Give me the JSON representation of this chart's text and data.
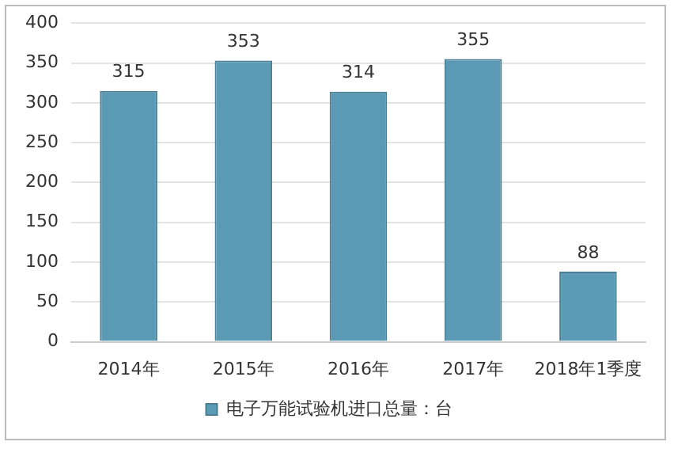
{
  "chart_data": {
    "type": "bar",
    "categories": [
      "2014年",
      "2015年",
      "2016年",
      "2017年",
      "2018年1季度"
    ],
    "series": [
      {
        "name": "电子万能试验机进口总量：台",
        "color": "#5a9ab5",
        "values": [
          315,
          353,
          314,
          355,
          88
        ]
      }
    ],
    "ylim": [
      0,
      400
    ],
    "yticks": [
      0,
      50,
      100,
      150,
      200,
      250,
      300,
      350,
      400
    ],
    "grid": "y",
    "legend": "bottom",
    "data_labels": true
  }
}
